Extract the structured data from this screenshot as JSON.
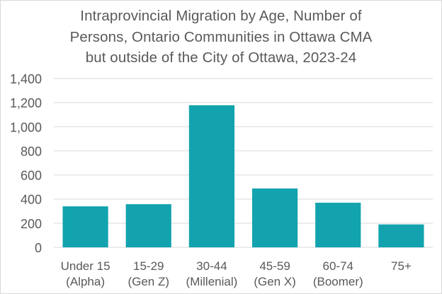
{
  "chart_data": {
    "type": "bar",
    "title_lines": [
      "Intraprovincial Migration by Age, Number of",
      "Persons, Ontario Communities in Ottawa CMA",
      "but outside of the City of Ottawa, 2023-24"
    ],
    "categories": [
      [
        "Under 15",
        "(Alpha)"
      ],
      [
        "15-29",
        "(Gen Z)"
      ],
      [
        "30-44",
        "(Millenial)"
      ],
      [
        "45-59",
        "(Gen X)"
      ],
      [
        "60-74",
        "(Boomer)"
      ],
      [
        "75+",
        ""
      ]
    ],
    "values": [
      340,
      358,
      1178,
      488,
      370,
      190
    ],
    "ylim": [
      0,
      1400
    ],
    "yticks": [
      "0",
      "200",
      "400",
      "600",
      "800",
      "1,000",
      "1,200",
      "1,400"
    ],
    "grid": true,
    "legend": "none",
    "colors": {
      "bar": "#12a3ae",
      "grid": "#d9d9d9",
      "text": "#595959"
    }
  }
}
